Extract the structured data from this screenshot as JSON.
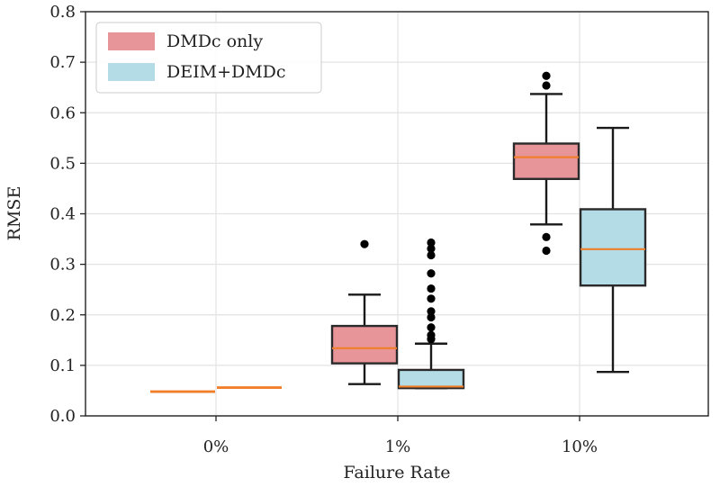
{
  "chart_data": {
    "type": "box",
    "title": "",
    "xlabel": "Failure Rate",
    "ylabel": "RMSE",
    "ylim": [
      0,
      0.8
    ],
    "yticks": [
      0.0,
      0.1,
      0.2,
      0.3,
      0.4,
      0.5,
      0.6,
      0.7,
      0.8
    ],
    "ytick_labels": [
      "0.0",
      "0.1",
      "0.2",
      "0.3",
      "0.4",
      "0.5",
      "0.6",
      "0.7",
      "0.8"
    ],
    "categories": [
      "0%",
      "1%",
      "10%"
    ],
    "grid": true,
    "legend_position": "top-left",
    "series": [
      {
        "name": "DMDc only",
        "color": "#e8959a",
        "median_color": "#f07e2a",
        "boxes": [
          {
            "category": "0%",
            "whisker_low": 0.048,
            "q1": 0.048,
            "median": 0.048,
            "q3": 0.048,
            "whisker_high": 0.048,
            "outliers": []
          },
          {
            "category": "1%",
            "whisker_low": 0.063,
            "q1": 0.104,
            "median": 0.134,
            "q3": 0.178,
            "whisker_high": 0.24,
            "outliers": [
              0.34
            ]
          },
          {
            "category": "10%",
            "whisker_low": 0.379,
            "q1": 0.469,
            "median": 0.512,
            "q3": 0.539,
            "whisker_high": 0.637,
            "outliers": [
              0.327,
              0.354,
              0.654,
              0.673
            ]
          }
        ]
      },
      {
        "name": "DEIM+DMDc",
        "color": "#b3dce6",
        "median_color": "#f07e2a",
        "boxes": [
          {
            "category": "0%",
            "whisker_low": 0.056,
            "q1": 0.056,
            "median": 0.056,
            "q3": 0.056,
            "whisker_high": 0.056,
            "outliers": []
          },
          {
            "category": "1%",
            "whisker_low": 0.055,
            "q1": 0.055,
            "median": 0.058,
            "q3": 0.091,
            "whisker_high": 0.143,
            "outliers": [
              0.152,
              0.16,
              0.175,
              0.195,
              0.207,
              0.232,
              0.252,
              0.282,
              0.318,
              0.331,
              0.343
            ]
          },
          {
            "category": "10%",
            "whisker_low": 0.087,
            "q1": 0.258,
            "median": 0.33,
            "q3": 0.409,
            "whisker_high": 0.57,
            "outliers": []
          }
        ]
      }
    ]
  }
}
